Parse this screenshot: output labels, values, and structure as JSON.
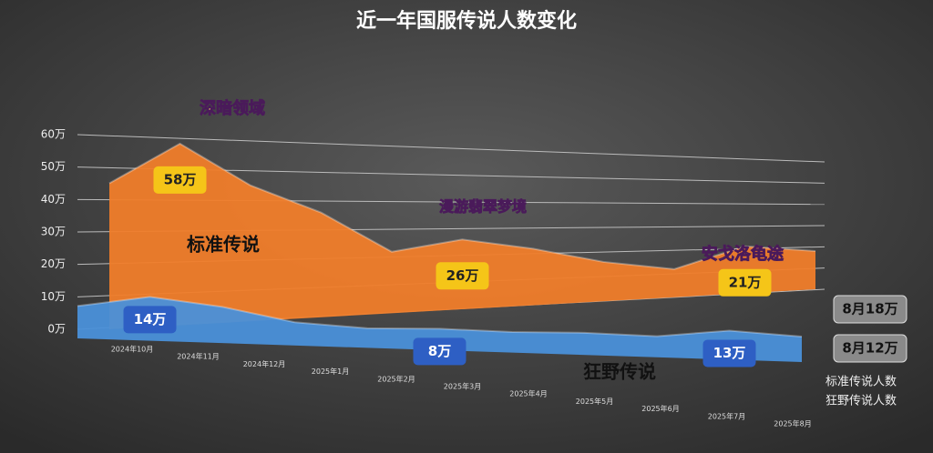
{
  "chart_data": {
    "type": "area",
    "title": "近一年国服传说人数变化",
    "categories": [
      "2024年10月",
      "2024年11月",
      "2024年12月",
      "2025年1月",
      "2025年2月",
      "2025年3月",
      "2025年4月",
      "2025年5月",
      "2025年6月",
      "2025年7月",
      "2025年8月"
    ],
    "series": [
      {
        "name": "标准传说人数",
        "color": "#f07d2a",
        "values": [
          45,
          58,
          45,
          36,
          22,
          26,
          22,
          16,
          12,
          21,
          18
        ],
        "value_labels": [
          null,
          "58万",
          null,
          null,
          null,
          "26万",
          null,
          null,
          null,
          "21万",
          "8月18万"
        ]
      },
      {
        "name": "狂野传说人数",
        "color": "#4a90d9",
        "values": [
          10,
          14,
          12,
          8,
          7,
          8,
          8,
          9,
          9,
          13,
          12
        ],
        "value_labels": [
          null,
          "14万",
          null,
          null,
          null,
          "8万",
          null,
          null,
          null,
          "13万",
          "8月12万"
        ]
      }
    ],
    "annotations": [
      "标准传说",
      "狂野传说",
      "深暗领域",
      "漫游翡翠梦境",
      "安戈洛龟途"
    ],
    "ylim": [
      0,
      60
    ],
    "yticks": [
      {
        "value": 0,
        "label": "0万"
      },
      {
        "value": 10,
        "label": "10万"
      },
      {
        "value": 20,
        "label": "20万"
      },
      {
        "value": 30,
        "label": "30万"
      },
      {
        "value": 40,
        "label": "40万"
      },
      {
        "value": 50,
        "label": "50万"
      },
      {
        "value": 60,
        "label": "60万"
      }
    ],
    "grid": true
  }
}
